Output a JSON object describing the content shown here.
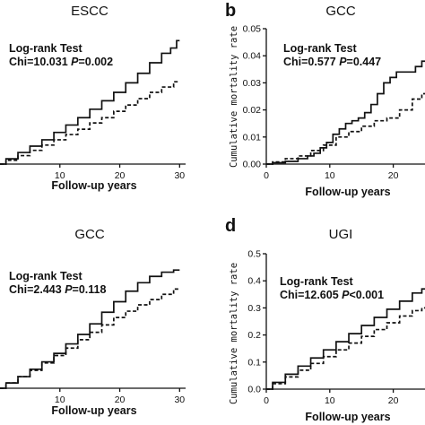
{
  "chart_data": [
    {
      "panel": "",
      "type": "line",
      "title": "ESCC",
      "xlabel": "Follow-up years",
      "ylabel": "",
      "xlim": [
        0,
        31
      ],
      "ylim": [
        0,
        0.065
      ],
      "xticks": [
        10,
        20,
        30
      ],
      "yticks": [],
      "annotation": [
        "Log-rank Test",
        "Chi=10.031 ",
        "P",
        "=0.002"
      ],
      "series": [
        {
          "style": "solid",
          "x": [
            0,
            2,
            4,
            6,
            8,
            10,
            12,
            14,
            16,
            18,
            20,
            22,
            24,
            26,
            28,
            29,
            30
          ],
          "y": [
            0,
            0.0025,
            0.0055,
            0.0085,
            0.0115,
            0.015,
            0.0185,
            0.022,
            0.026,
            0.03,
            0.034,
            0.0385,
            0.043,
            0.048,
            0.0525,
            0.055,
            0.0585
          ]
        },
        {
          "style": "dashed",
          "x": [
            0,
            2,
            4,
            6,
            8,
            10,
            12,
            14,
            16,
            18,
            20,
            22,
            24,
            26,
            28,
            30
          ],
          "y": [
            0,
            0.0018,
            0.004,
            0.0065,
            0.009,
            0.0115,
            0.014,
            0.0165,
            0.0195,
            0.022,
            0.025,
            0.028,
            0.031,
            0.034,
            0.0365,
            0.039
          ]
        }
      ]
    },
    {
      "panel": "b",
      "type": "line",
      "title": "GCC",
      "xlabel": "Follow-up years",
      "ylabel": "Cumulative mortality rate",
      "xlim": [
        0,
        25
      ],
      "ylim": [
        0,
        0.05
      ],
      "xticks": [
        0,
        10,
        20
      ],
      "yticks": [
        0.0,
        0.01,
        0.02,
        0.03,
        0.04,
        0.05
      ],
      "annotation": [
        "Log-rank Test",
        "Chi=0.577 ",
        "P",
        "=0.447"
      ],
      "series": [
        {
          "style": "solid",
          "x": [
            0,
            2,
            4,
            6,
            7,
            8,
            9,
            10,
            11,
            12,
            13,
            14,
            15,
            16,
            17,
            18,
            19,
            20,
            21,
            22,
            23,
            24,
            25
          ],
          "y": [
            0,
            0.0005,
            0.001,
            0.002,
            0.003,
            0.004,
            0.006,
            0.008,
            0.011,
            0.013,
            0.015,
            0.016,
            0.017,
            0.019,
            0.022,
            0.026,
            0.03,
            0.032,
            0.034,
            0.034,
            0.034,
            0.036,
            0.038
          ]
        },
        {
          "style": "dashed",
          "x": [
            0,
            2,
            4,
            6,
            8,
            10,
            12,
            14,
            16,
            18,
            20,
            22,
            24,
            25
          ],
          "y": [
            0,
            0.0008,
            0.002,
            0.003,
            0.005,
            0.007,
            0.01,
            0.012,
            0.014,
            0.016,
            0.017,
            0.02,
            0.024,
            0.026
          ]
        }
      ]
    },
    {
      "panel": "",
      "type": "line",
      "title": "GCC",
      "xlabel": "Follow-up years",
      "ylabel": "",
      "xlim": [
        0,
        31
      ],
      "ylim": [
        0,
        0.065
      ],
      "xticks": [
        10,
        20,
        30
      ],
      "yticks": [],
      "annotation": [
        "Log-rank Test",
        "Chi=2.443 ",
        "P",
        "=0.118"
      ],
      "series": [
        {
          "style": "solid",
          "x": [
            0,
            2,
            4,
            6,
            8,
            10,
            12,
            14,
            16,
            18,
            20,
            22,
            24,
            26,
            28,
            30
          ],
          "y": [
            0,
            0.0025,
            0.0055,
            0.009,
            0.0125,
            0.0165,
            0.021,
            0.0255,
            0.0305,
            0.036,
            0.041,
            0.046,
            0.05,
            0.053,
            0.055,
            0.056
          ]
        },
        {
          "style": "dashed",
          "x": [
            0,
            2,
            4,
            6,
            8,
            10,
            12,
            14,
            16,
            18,
            20,
            22,
            24,
            26,
            28,
            30
          ],
          "y": [
            0,
            0.0025,
            0.0055,
            0.0085,
            0.012,
            0.0155,
            0.019,
            0.023,
            0.0265,
            0.03,
            0.0335,
            0.0365,
            0.0395,
            0.042,
            0.0445,
            0.047
          ]
        }
      ]
    },
    {
      "panel": "d",
      "type": "line",
      "title": "UGI",
      "xlabel": "Follow-up years",
      "ylabel": "Cumulative mortality rate",
      "xlim": [
        0,
        25
      ],
      "ylim": [
        0,
        0.5
      ],
      "xticks": [
        0,
        10,
        20
      ],
      "yticks": [
        0.0,
        0.1,
        0.2,
        0.3,
        0.4,
        0.5
      ],
      "annotation": [
        "Log-rank Test",
        "Chi=12.605 ",
        "P",
        "<0.001"
      ],
      "series": [
        {
          "style": "solid",
          "x": [
            0,
            2,
            4,
            6,
            8,
            10,
            12,
            14,
            16,
            18,
            20,
            22,
            24,
            25
          ],
          "y": [
            0,
            0.025,
            0.055,
            0.085,
            0.115,
            0.145,
            0.175,
            0.205,
            0.235,
            0.265,
            0.295,
            0.325,
            0.355,
            0.37
          ]
        },
        {
          "style": "dashed",
          "x": [
            0,
            2,
            4,
            6,
            8,
            10,
            12,
            14,
            16,
            18,
            20,
            22,
            24,
            25
          ],
          "y": [
            0,
            0.02,
            0.045,
            0.07,
            0.095,
            0.12,
            0.145,
            0.17,
            0.195,
            0.22,
            0.245,
            0.27,
            0.29,
            0.3
          ]
        }
      ]
    }
  ]
}
